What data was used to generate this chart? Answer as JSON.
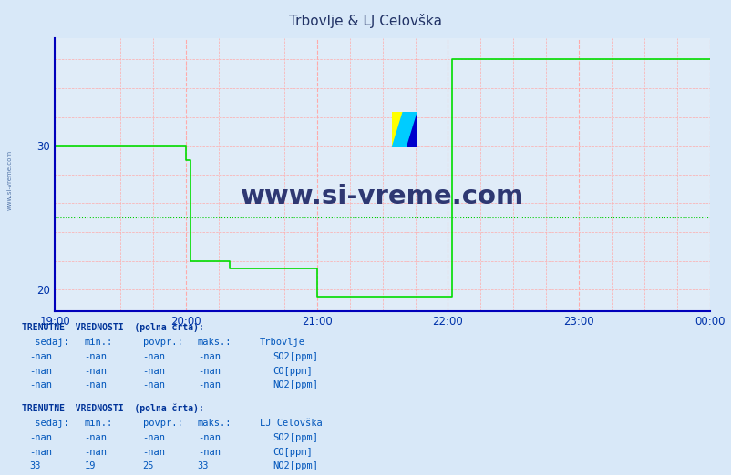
{
  "title": "Trbovlje & LJ Celovška",
  "bg_color": "#d8e8f8",
  "plot_bg_color": "#e0ecf8",
  "grid_color_h": "#ffaaaa",
  "grid_color_v": "#ffaaaa",
  "axis_color": "#0000bb",
  "title_color": "#223366",
  "text_color": "#0033aa",
  "table_bold_color": "#003399",
  "table_text_color": "#0055bb",
  "xlim": [
    0,
    300
  ],
  "ylim": [
    18.5,
    37.5
  ],
  "yticks": [
    20,
    30
  ],
  "xtick_labels": [
    "19:00",
    "20:00",
    "21:00",
    "22:00",
    "23:00",
    "00:00"
  ],
  "xtick_positions": [
    0,
    60,
    120,
    180,
    240,
    300
  ],
  "line_color_no2": "#00dd00",
  "avg_line_color": "#00cc00",
  "avg_line_y": 25.0,
  "no2_x": [
    0,
    60,
    62,
    80,
    120,
    122,
    182,
    183,
    300
  ],
  "no2_y": [
    30,
    30,
    29,
    22,
    21.5,
    19.5,
    19.5,
    36,
    36
  ],
  "so2_color_trb": "#006655",
  "co_color_trb": "#00bbcc",
  "no2_color_trb": "#00cc00",
  "so2_color_lj": "#006655",
  "co_color_lj": "#00bbcc",
  "no2_color_lj": "#00cc00",
  "dpi": 100,
  "figwidth": 8.03,
  "figheight": 5.22,
  "watermark_text": "www.si-vreme.com",
  "watermark_color": "#1a2464",
  "side_text": "www.si-vreme.com",
  "side_text_color": "#5577aa"
}
